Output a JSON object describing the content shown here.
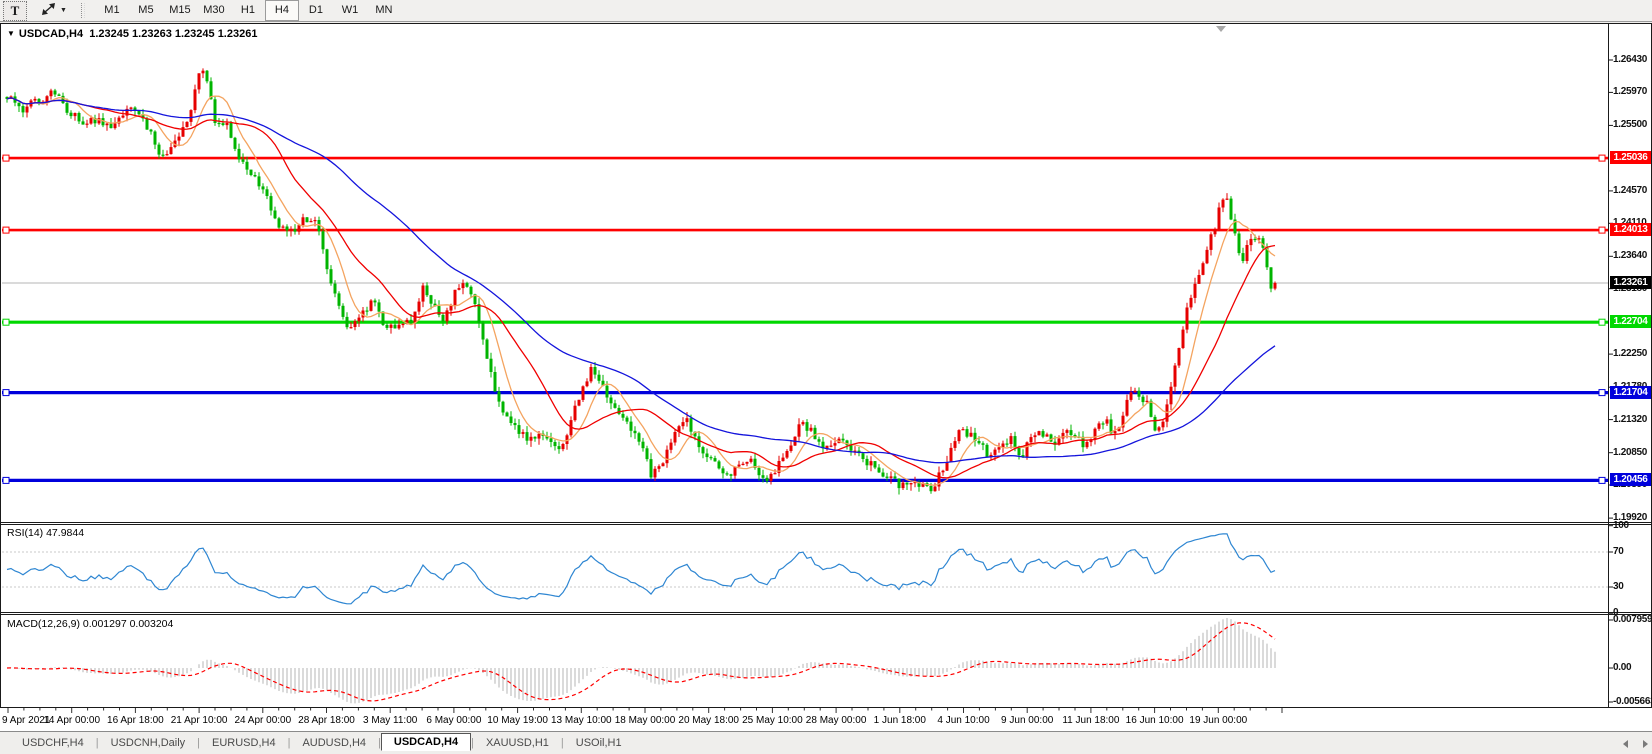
{
  "toolbar": {
    "text_tool": "T",
    "timeframes": [
      "M1",
      "M5",
      "M15",
      "M30",
      "H1",
      "H4",
      "D1",
      "W1",
      "MN"
    ],
    "active_timeframe": "H4"
  },
  "chart": {
    "symbol_caret": "▼",
    "title": "USDCAD,H4",
    "ohlc_text": "1.23245 1.23263 1.23245 1.23261"
  },
  "chart_data": {
    "type": "candlestick",
    "symbol": "USDCAD",
    "period": "H4",
    "open": 1.23245,
    "high": 1.23263,
    "low": 1.23245,
    "close": 1.23261,
    "current_price": 1.23261,
    "up_color": "#e60000",
    "down_color": "#00b400",
    "price_axis_ticks": [
      1.2643,
      1.2597,
      1.255,
      1.2457,
      1.2411,
      1.2364,
      1.2318,
      1.2225,
      1.2178,
      1.2132,
      1.2085,
      1.2039,
      1.1992
    ],
    "price_levels": [
      {
        "value": 1.25036,
        "label": "1.25036",
        "color": "#ff0000",
        "width": 2.6
      },
      {
        "value": 1.24013,
        "label": "1.24013",
        "color": "#ff0000",
        "width": 2.6
      },
      {
        "value": 1.22704,
        "label": "1.22704",
        "color": "#00d800",
        "width": 3.2
      },
      {
        "value": 1.21704,
        "label": "1.21704",
        "color": "#0000dc",
        "width": 3.2
      },
      {
        "value": 1.20456,
        "label": "1.20456",
        "color": "#0000dc",
        "width": 3.2
      }
    ],
    "x_labels": [
      "9 Apr 2021",
      "14 Apr 00:00",
      "16 Apr 18:00",
      "21 Apr 10:00",
      "24 Apr 00:00",
      "28 Apr 18:00",
      "3 May 11:00",
      "6 May 00:00",
      "10 May 19:00",
      "13 May 10:00",
      "18 May 00:00",
      "20 May 18:00",
      "25 May 10:00",
      "28 May 00:00",
      "1 Jun 18:00",
      "4 Jun 10:00",
      "9 Jun 00:00",
      "11 Jun 18:00",
      "16 Jun 10:00",
      "19 Jun 00:00"
    ],
    "moving_averages": [
      {
        "name": "fast",
        "color": "#f4a460",
        "period": 8
      },
      {
        "name": "mid",
        "color": "#f00000",
        "period": 21
      },
      {
        "name": "slow",
        "color": "#1414dc",
        "period": 55
      }
    ],
    "price_path_keyframes": [
      [
        5,
        1.2592
      ],
      [
        21,
        1.257
      ],
      [
        37,
        1.2585
      ],
      [
        52,
        1.26
      ],
      [
        65,
        1.2575
      ],
      [
        79,
        1.2556
      ],
      [
        92,
        1.2562
      ],
      [
        105,
        1.2545
      ],
      [
        121,
        1.2565
      ],
      [
        137,
        1.2572
      ],
      [
        149,
        1.254
      ],
      [
        160,
        1.2506
      ],
      [
        170,
        1.252
      ],
      [
        181,
        1.2545
      ],
      [
        191,
        1.2575
      ],
      [
        199,
        1.2638
      ],
      [
        206,
        1.2618
      ],
      [
        215,
        1.2552
      ],
      [
        226,
        1.2548
      ],
      [
        239,
        1.25
      ],
      [
        252,
        1.248
      ],
      [
        265,
        1.2448
      ],
      [
        275,
        1.2412
      ],
      [
        286,
        1.2395
      ],
      [
        296,
        1.2408
      ],
      [
        310,
        1.242
      ],
      [
        320,
        1.2398
      ],
      [
        328,
        1.233
      ],
      [
        338,
        1.2292
      ],
      [
        349,
        1.2256
      ],
      [
        362,
        1.228
      ],
      [
        373,
        1.23
      ],
      [
        383,
        1.227
      ],
      [
        397,
        1.2262
      ],
      [
        410,
        1.2272
      ],
      [
        422,
        1.232
      ],
      [
        433,
        1.2295
      ],
      [
        443,
        1.227
      ],
      [
        454,
        1.231
      ],
      [
        464,
        1.233
      ],
      [
        475,
        1.229
      ],
      [
        485,
        1.2225
      ],
      [
        496,
        1.2165
      ],
      [
        506,
        1.2135
      ],
      [
        517,
        1.212
      ],
      [
        527,
        1.21
      ],
      [
        538,
        1.2118
      ],
      [
        548,
        1.2105
      ],
      [
        559,
        1.2085
      ],
      [
        569,
        1.213
      ],
      [
        580,
        1.2165
      ],
      [
        590,
        1.2205
      ],
      [
        599,
        1.218
      ],
      [
        609,
        1.216
      ],
      [
        622,
        1.2132
      ],
      [
        632,
        1.212
      ],
      [
        643,
        1.2085
      ],
      [
        651,
        1.2052
      ],
      [
        662,
        1.2075
      ],
      [
        672,
        1.211
      ],
      [
        685,
        1.213
      ],
      [
        695,
        1.21
      ],
      [
        706,
        1.2085
      ],
      [
        716,
        1.2062
      ],
      [
        727,
        1.2052
      ],
      [
        737,
        1.207
      ],
      [
        748,
        1.2078
      ],
      [
        758,
        1.2058
      ],
      [
        769,
        1.2048
      ],
      [
        779,
        1.207
      ],
      [
        790,
        1.21
      ],
      [
        800,
        1.2126
      ],
      [
        811,
        1.2115
      ],
      [
        821,
        1.2088
      ],
      [
        832,
        1.209
      ],
      [
        842,
        1.2106
      ],
      [
        853,
        1.2088
      ],
      [
        863,
        1.2075
      ],
      [
        874,
        1.2062
      ],
      [
        884,
        1.2056
      ],
      [
        895,
        1.2046
      ],
      [
        901,
        1.2035
      ],
      [
        909,
        1.2045
      ],
      [
        920,
        1.2038
      ],
      [
        930,
        1.2032
      ],
      [
        941,
        1.206
      ],
      [
        951,
        1.209
      ],
      [
        960,
        1.2122
      ],
      [
        968,
        1.2108
      ],
      [
        979,
        1.21
      ],
      [
        989,
        1.2078
      ],
      [
        1000,
        1.2092
      ],
      [
        1010,
        1.2102
      ],
      [
        1021,
        1.2082
      ],
      [
        1031,
        1.2105
      ],
      [
        1042,
        1.2112
      ],
      [
        1052,
        1.2095
      ],
      [
        1063,
        1.2118
      ],
      [
        1073,
        1.2108
      ],
      [
        1084,
        1.2092
      ],
      [
        1094,
        1.2122
      ],
      [
        1105,
        1.2128
      ],
      [
        1115,
        1.2108
      ],
      [
        1126,
        1.216
      ],
      [
        1136,
        1.2172
      ],
      [
        1147,
        1.215
      ],
      [
        1155,
        1.2115
      ],
      [
        1163,
        1.2132
      ],
      [
        1172,
        1.2185
      ],
      [
        1180,
        1.2255
      ],
      [
        1188,
        1.23
      ],
      [
        1197,
        1.234
      ],
      [
        1205,
        1.2372
      ],
      [
        1213,
        1.2402
      ],
      [
        1223,
        1.2455
      ],
      [
        1229,
        1.2428
      ],
      [
        1235,
        1.239
      ],
      [
        1241,
        1.236
      ],
      [
        1250,
        1.2388
      ],
      [
        1257,
        1.2398
      ],
      [
        1263,
        1.2365
      ],
      [
        1269,
        1.2318
      ],
      [
        1274,
        1.2326
      ]
    ],
    "rsi": {
      "label": "RSI(14) 47.9844",
      "period": 14,
      "value": 47.9844,
      "axis": [
        "100",
        "70",
        "30",
        "0"
      ],
      "levels": [
        70,
        30
      ],
      "color": "#2e86d2"
    },
    "macd": {
      "label": "MACD(12,26,9) 0.001297 0.003204",
      "macd_value": 0.001297,
      "signal_value": 0.003204,
      "axis_max": "0.007959",
      "axis_zero": "0.00",
      "axis_min": "-0.005663",
      "hist_color": "#b4b4b4",
      "signal_color": "#ff0000"
    }
  },
  "tabs": {
    "items": [
      "USDCHF,H4",
      "USDCNH,Daily",
      "EURUSD,H4",
      "AUDUSD,H4",
      "USDCAD,H4",
      "XAUUSD,H1",
      "USOil,H1"
    ],
    "active": "USDCAD,H4"
  }
}
